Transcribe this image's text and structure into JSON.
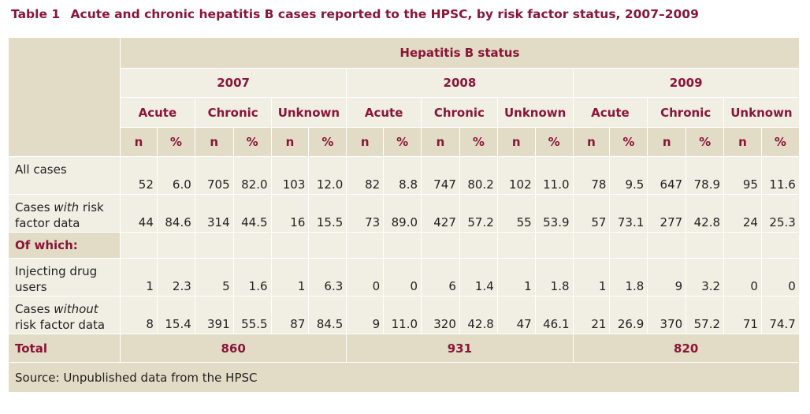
{
  "caption": {
    "number": "Table 1",
    "title": "Acute and chronic hepatitis B cases reported to the HPSC, by risk factor status, 2007–2009"
  },
  "header": {
    "status": "Hepatitis B status",
    "years": [
      "2007",
      "2008",
      "2009"
    ],
    "subgroups": [
      "Acute",
      "Chronic",
      "Unknown"
    ],
    "n_label": "n",
    "pct_label": "%"
  },
  "rows": {
    "all_cases": {
      "label": "All cases",
      "values": [
        "52",
        "6.0",
        "705",
        "82.0",
        "103",
        "12.0",
        "82",
        "8.8",
        "747",
        "80.2",
        "102",
        "11.0",
        "78",
        "9.5",
        "647",
        "78.9",
        "95",
        "11.6"
      ]
    },
    "with_risk": {
      "label_pre": "Cases ",
      "label_em": "with",
      "label_post": " risk factor data",
      "values": [
        "44",
        "84.6",
        "314",
        "44.5",
        "16",
        "15.5",
        "73",
        "89.0",
        "427",
        "57.2",
        "55",
        "53.9",
        "57",
        "73.1",
        "277",
        "42.8",
        "24",
        "25.3"
      ]
    },
    "of_which": {
      "label": "Of which:"
    },
    "idu": {
      "label": "Injecting drug users",
      "values": [
        "1",
        "2.3",
        "5",
        "1.6",
        "1",
        "6.3",
        "0",
        "0",
        "6",
        "1.4",
        "1",
        "1.8",
        "1",
        "1.8",
        "9",
        "3.2",
        "0",
        "0"
      ]
    },
    "without_risk": {
      "label_pre": "Cases ",
      "label_em": "without",
      "label_post": " risk factor data",
      "values": [
        "8",
        "15.4",
        "391",
        "55.5",
        "87",
        "84.5",
        "9",
        "11.0",
        "320",
        "42.8",
        "47",
        "46.1",
        "21",
        "26.9",
        "370",
        "57.2",
        "71",
        "74.7"
      ]
    },
    "total": {
      "label": "Total",
      "values": [
        "860",
        "931",
        "820"
      ]
    }
  },
  "source": "Source: Unpublished data from the HPSC",
  "colors": {
    "accent": "#8a1538",
    "cell_dark": "#e2dcc6",
    "cell_light": "#f1eee3",
    "text": "#231f20"
  }
}
